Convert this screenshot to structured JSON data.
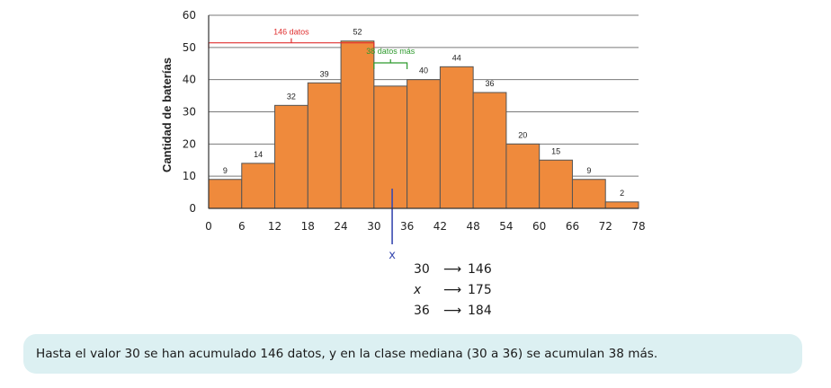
{
  "chart_data": {
    "type": "bar",
    "ylabel": "Cantidad de baterías",
    "xlabel": "",
    "x_ticks": [
      "0",
      "6",
      "12",
      "18",
      "24",
      "30",
      "36",
      "42",
      "48",
      "54",
      "60",
      "66",
      "72",
      "78"
    ],
    "y_ticks": [
      "0",
      "10",
      "20",
      "30",
      "40",
      "50",
      "60"
    ],
    "ylim": [
      0,
      60
    ],
    "xlim": [
      0,
      78
    ],
    "bins": [
      [
        0,
        6
      ],
      [
        6,
        12
      ],
      [
        12,
        18
      ],
      [
        18,
        24
      ],
      [
        24,
        30
      ],
      [
        30,
        36
      ],
      [
        36,
        42
      ],
      [
        42,
        48
      ],
      [
        48,
        54
      ],
      [
        54,
        60
      ],
      [
        60,
        66
      ],
      [
        66,
        72
      ],
      [
        72,
        78
      ]
    ],
    "values": [
      9,
      14,
      32,
      39,
      52,
      38,
      40,
      44,
      36,
      20,
      15,
      9,
      2
    ],
    "data_labels": [
      "9",
      "14",
      "32",
      "39",
      "52",
      "",
      "40",
      "44",
      "36",
      "20",
      "15",
      "9",
      "2"
    ],
    "bar_color": "#ef8a3c",
    "grid": true,
    "annotations": {
      "red_bracket": {
        "text": "146 datos",
        "from": 0,
        "to": 30,
        "color": "#e03030"
      },
      "green_bracket": {
        "text": "38 datos más",
        "from": 30,
        "to": 36,
        "color": "#2e9a2e"
      },
      "median_marker": {
        "text": "x",
        "value": 33.3,
        "color": "#3a4bb0"
      }
    }
  },
  "interpolation": [
    {
      "left": "30",
      "right": "146"
    },
    {
      "left": "x",
      "right": "175"
    },
    {
      "left": "36",
      "right": "184"
    }
  ],
  "arrow": "⟶",
  "note": "Hasta el valor 30 se han acumulado 146 datos, y en la clase mediana (30 a 36) se acumulan 38 más."
}
